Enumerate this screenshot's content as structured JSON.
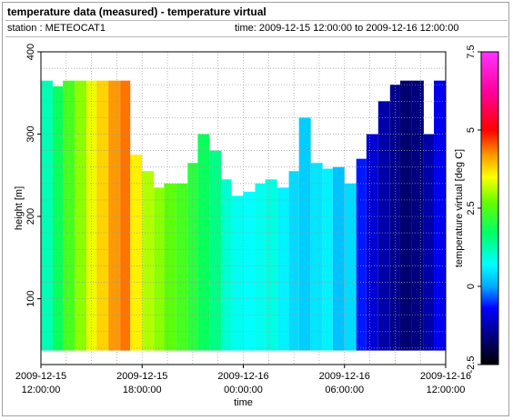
{
  "header": {
    "title": "temperature data (measured) - temperature virtual",
    "station": "station : METEOCAT1",
    "time_range": "time: 2009-12-15 12:00:00 to 2009-12-16 12:00:00"
  },
  "chart_data": {
    "type": "heatmap",
    "xlabel": "time",
    "ylabel": "height [m]",
    "x_ticks": [
      {
        "value": 0,
        "line1": "2009-12-15",
        "line2": "12:00:00"
      },
      {
        "value": 6,
        "line1": "2009-12-15",
        "line2": "18:00:00"
      },
      {
        "value": 12,
        "line1": "2009-12-16",
        "line2": "00:00:00"
      },
      {
        "value": 18,
        "line1": "2009-12-16",
        "line2": "06:00:00"
      },
      {
        "value": 24,
        "line1": "2009-12-16",
        "line2": "12:00:00"
      }
    ],
    "xlim_hours_from_start": [
      0,
      24
    ],
    "ylim": [
      20,
      400
    ],
    "y_ticks": [
      100,
      200,
      300,
      400
    ],
    "colorbar": {
      "label": "temperature virtual [deg C]",
      "range": [
        -2.5,
        7.5
      ],
      "ticks": [
        "-2.5",
        "0",
        "2.5",
        "5",
        "7.5"
      ],
      "tick_values": [
        -2.5,
        0,
        2.5,
        5,
        7.5
      ]
    },
    "grid": true,
    "data_bottom_height": 37,
    "columns": [
      {
        "t": 0.0,
        "top": 365,
        "v": 1.2
      },
      {
        "t": 0.7,
        "top": 358,
        "v": 1.8
      },
      {
        "t": 1.3,
        "top": 365,
        "v": 2.4
      },
      {
        "t": 2.0,
        "top": 365,
        "v": 2.9
      },
      {
        "t": 2.7,
        "top": 365,
        "v": 3.4
      },
      {
        "t": 3.3,
        "top": 365,
        "v": 3.8
      },
      {
        "t": 4.0,
        "top": 365,
        "v": 4.2
      },
      {
        "t": 4.7,
        "top": 365,
        "v": 4.4
      },
      {
        "t": 5.3,
        "top": 275,
        "v": 3.6
      },
      {
        "t": 6.0,
        "top": 255,
        "v": 3.1
      },
      {
        "t": 6.7,
        "top": 235,
        "v": 2.9
      },
      {
        "t": 7.3,
        "top": 240,
        "v": 2.6
      },
      {
        "t": 8.0,
        "top": 240,
        "v": 2.4
      },
      {
        "t": 8.7,
        "top": 265,
        "v": 2.1
      },
      {
        "t": 9.3,
        "top": 300,
        "v": 1.8
      },
      {
        "t": 10.0,
        "top": 280,
        "v": 1.5
      },
      {
        "t": 10.7,
        "top": 245,
        "v": 1.0
      },
      {
        "t": 11.3,
        "top": 225,
        "v": 0.8
      },
      {
        "t": 12.0,
        "top": 230,
        "v": 0.7
      },
      {
        "t": 12.7,
        "top": 240,
        "v": 0.8
      },
      {
        "t": 13.3,
        "top": 245,
        "v": 0.9
      },
      {
        "t": 14.0,
        "top": 235,
        "v": 0.6
      },
      {
        "t": 14.7,
        "top": 255,
        "v": 0.4
      },
      {
        "t": 15.3,
        "top": 320,
        "v": 0.3
      },
      {
        "t": 16.0,
        "top": 265,
        "v": 0.5
      },
      {
        "t": 16.7,
        "top": 258,
        "v": 0.6
      },
      {
        "t": 17.3,
        "top": 260,
        "v": 0.2
      },
      {
        "t": 18.0,
        "top": 240,
        "v": 0.4
      },
      {
        "t": 18.7,
        "top": 270,
        "v": -0.6
      },
      {
        "t": 19.3,
        "top": 300,
        "v": -1.0
      },
      {
        "t": 20.0,
        "top": 340,
        "v": -1.3
      },
      {
        "t": 20.7,
        "top": 360,
        "v": -1.5
      },
      {
        "t": 21.3,
        "top": 365,
        "v": -1.7
      },
      {
        "t": 22.0,
        "top": 365,
        "v": -1.6
      },
      {
        "t": 22.7,
        "top": 300,
        "v": -1.3
      },
      {
        "t": 23.3,
        "top": 365,
        "v": -0.8
      }
    ]
  }
}
